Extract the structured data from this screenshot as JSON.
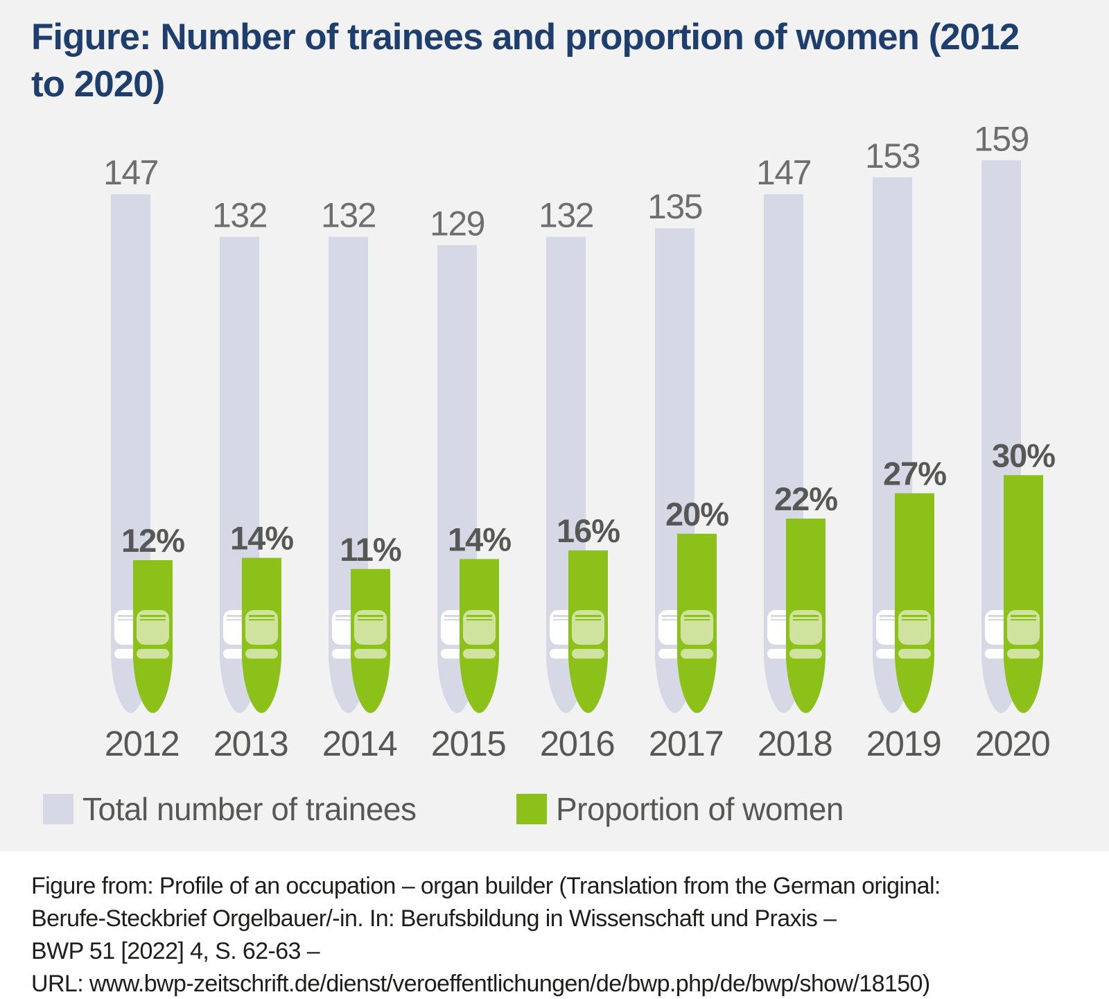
{
  "page": {
    "title": "Figure: Number of trainees and proportion of women (2012 to 2020)"
  },
  "chart_data": {
    "type": "bar",
    "style": "organ-pipe pictogram, paired bars per year",
    "title": "Number of trainees and proportion of women (2012 to 2020)",
    "categories": [
      "2012",
      "2013",
      "2014",
      "2015",
      "2016",
      "2017",
      "2018",
      "2019",
      "2020"
    ],
    "series": [
      {
        "name": "Total number of trainees",
        "values": [
          147,
          132,
          132,
          129,
          132,
          135,
          147,
          153,
          159
        ],
        "color": "#d6d8e6",
        "label_color": "#6e6e6e"
      },
      {
        "name": "Proportion of women",
        "unit": "%",
        "values": [
          12,
          14,
          11,
          14,
          16,
          20,
          22,
          27,
          30
        ],
        "color": "#8cc11a",
        "label_color": "#575756"
      }
    ],
    "xlabel": "",
    "ylabel": "",
    "axes_visible": false,
    "gridlines": false,
    "legend_position": "bottom"
  },
  "legend": {
    "items": [
      {
        "label": "Total number of trainees",
        "color": "#d6d8e6"
      },
      {
        "label": "Proportion of women",
        "color": "#8cc11a"
      }
    ]
  },
  "footer": {
    "lines": [
      "Figure from: Profile of an occupation – organ builder (Translation from the German original:",
      "Berufe-Steckbrief Orgelbauer/-in. In: Berufsbildung in Wissenschaft und Praxis –",
      "BWP 51 [2022] 4, S. 62-63 –",
      "URL: www.bwp-zeitschrift.de/dienst/veroeffentlichungen/de/bwp.php/de/bwp/show/18150)"
    ]
  },
  "colors": {
    "background": "#f2f2f3",
    "footer_background": "#ffffff",
    "title": "#1e3e6e",
    "lavender": "#d6d8e6",
    "green": "#8cc11a",
    "pale_green": "#cfe39e",
    "mouth_white": "#ffffff",
    "value_label": "#6e6e6e",
    "percent_label": "#575756",
    "year_label": "#575756",
    "legend_text": "#575756",
    "footer_text": "#1d1d1b"
  }
}
